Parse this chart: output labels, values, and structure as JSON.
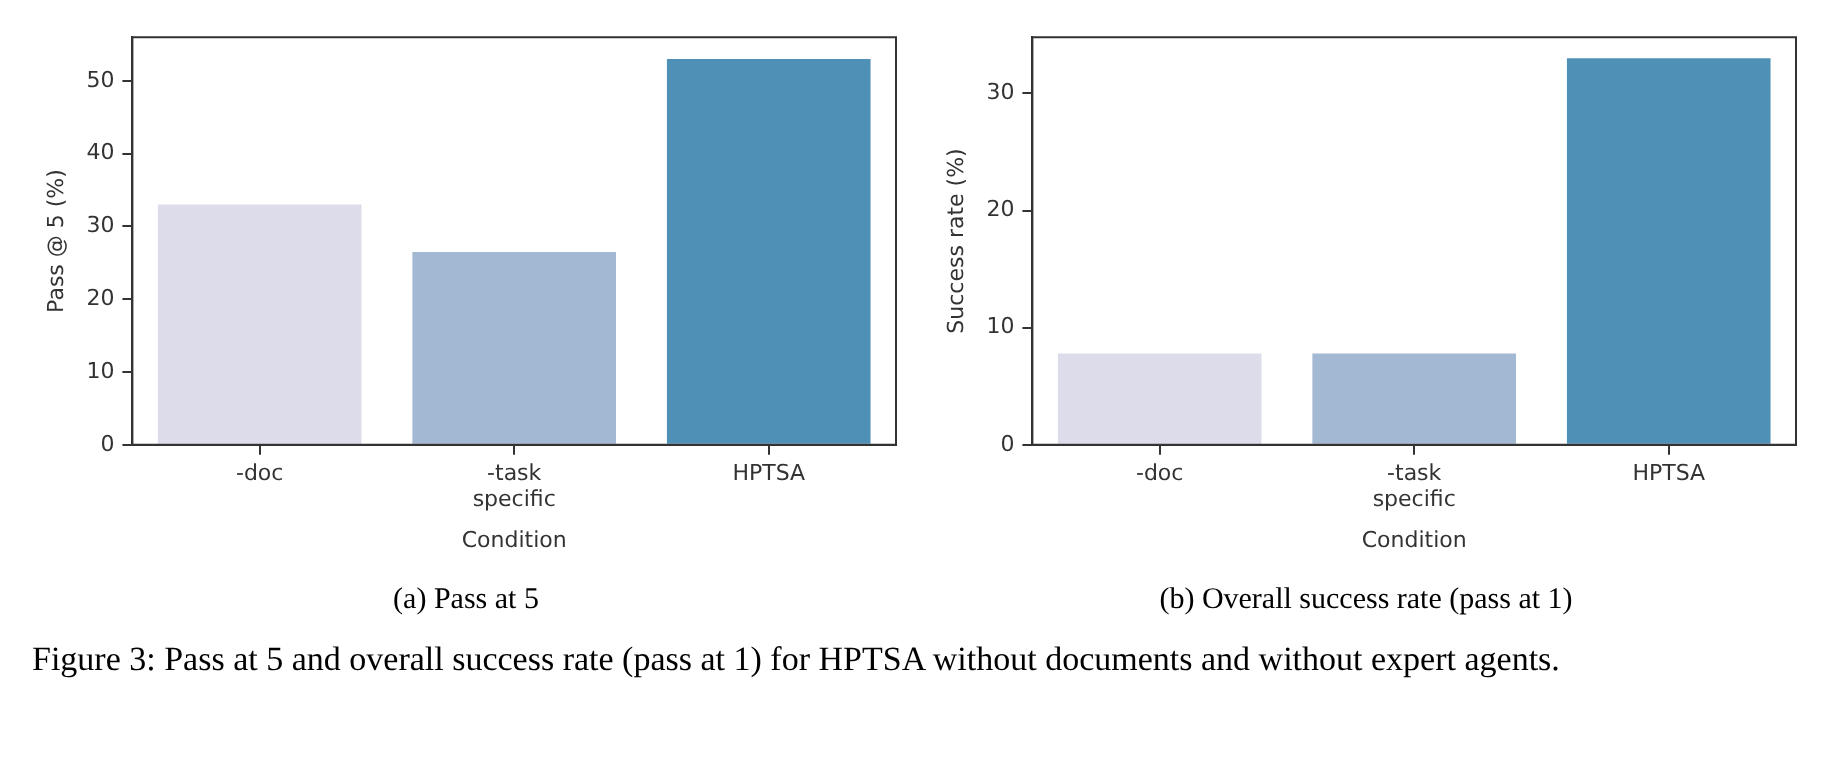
{
  "chart_data": [
    {
      "type": "bar",
      "title": "(a) Pass at 5",
      "xlabel": "Condition",
      "ylabel": "Pass @ 5 (%)",
      "categories": [
        "-doc",
        "-task specific",
        "HPTSA"
      ],
      "values": [
        33,
        26.5,
        53
      ],
      "colors": [
        "#dcdcea",
        "#a3b8d3",
        "#4f90b6"
      ],
      "ylim": [
        0,
        56
      ],
      "yticks": [
        0,
        10,
        20,
        30,
        40,
        50
      ],
      "grid": false,
      "annotations": [
        "Figure 3: Pass at 5 and overall success rate (pass at 1) for HPTSA without documents and without expert agents."
      ]
    },
    {
      "type": "bar",
      "title": "(b) Overall success rate (pass at 1)",
      "xlabel": "Condition",
      "ylabel": "Success rate (%)",
      "categories": [
        "-doc",
        "-task specific",
        "HPTSA"
      ],
      "values": [
        7.8,
        7.8,
        33
      ],
      "colors": [
        "#dcdcea",
        "#a3b8d3",
        "#4f90b6"
      ],
      "ylim": [
        0,
        34.8
      ],
      "yticks": [
        0,
        10,
        20,
        30
      ],
      "grid": false
    }
  ]
}
